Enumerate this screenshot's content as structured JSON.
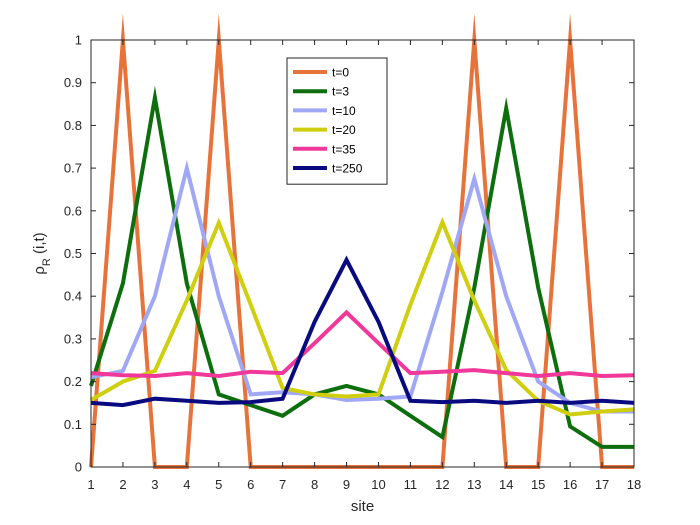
{
  "chart_data": {
    "type": "line",
    "title": "",
    "xlabel": "site",
    "ylabel": "ρ",
    "ylabel_sub": "R",
    "ylabel_suffix": " (i,t)",
    "xlim": [
      1,
      18
    ],
    "ylim": [
      0,
      1
    ],
    "x": [
      1,
      2,
      3,
      4,
      5,
      6,
      7,
      8,
      9,
      10,
      11,
      12,
      13,
      14,
      15,
      16,
      17,
      18
    ],
    "xticks": [
      "1",
      "2",
      "3",
      "4",
      "5",
      "6",
      "7",
      "8",
      "9",
      "10",
      "11",
      "12",
      "13",
      "14",
      "15",
      "16",
      "17",
      "18"
    ],
    "yticks": [
      "0",
      "0.1",
      "0.2",
      "0.3",
      "0.4",
      "0.5",
      "0.6",
      "0.7",
      "0.8",
      "0.9",
      "1"
    ],
    "ytick_values": [
      0,
      0.1,
      0.2,
      0.3,
      0.4,
      0.5,
      0.6,
      0.7,
      0.8,
      0.9,
      1
    ],
    "grid": false,
    "legend_position": "top-center",
    "series": [
      {
        "name": "t=0",
        "color": "#E8733A",
        "values": [
          0,
          1,
          0,
          0,
          1,
          0,
          0,
          0,
          0,
          0,
          0,
          0,
          1,
          0,
          0,
          1,
          0,
          0
        ]
      },
      {
        "name": "t=3",
        "color": "#0D6E0D",
        "values": [
          0.19,
          0.43,
          0.865,
          0.43,
          0.17,
          0.145,
          0.12,
          0.17,
          0.19,
          0.17,
          0.12,
          0.07,
          0.42,
          0.84,
          0.42,
          0.095,
          0.047,
          0.047
        ]
      },
      {
        "name": "t=10",
        "color": "#A0A8F5",
        "values": [
          0.21,
          0.225,
          0.4,
          0.7,
          0.4,
          0.17,
          0.175,
          0.17,
          0.157,
          0.16,
          0.165,
          0.41,
          0.675,
          0.4,
          0.2,
          0.15,
          0.13,
          0.13
        ]
      },
      {
        "name": "t=20",
        "color": "#CFCF10",
        "values": [
          0.157,
          0.2,
          0.225,
          0.39,
          0.572,
          0.38,
          0.185,
          0.17,
          0.165,
          0.17,
          0.38,
          0.573,
          0.39,
          0.227,
          0.155,
          0.123,
          0.13,
          0.135
        ]
      },
      {
        "name": "t=35",
        "color": "#F0389A",
        "values": [
          0.22,
          0.215,
          0.213,
          0.22,
          0.213,
          0.223,
          0.22,
          0.29,
          0.362,
          0.29,
          0.22,
          0.223,
          0.227,
          0.22,
          0.213,
          0.22,
          0.213,
          0.215
        ]
      },
      {
        "name": "t=250",
        "color": "#0A0A80",
        "values": [
          0.15,
          0.145,
          0.16,
          0.155,
          0.15,
          0.152,
          0.16,
          0.34,
          0.485,
          0.34,
          0.155,
          0.152,
          0.155,
          0.15,
          0.155,
          0.15,
          0.155,
          0.15
        ]
      }
    ]
  }
}
